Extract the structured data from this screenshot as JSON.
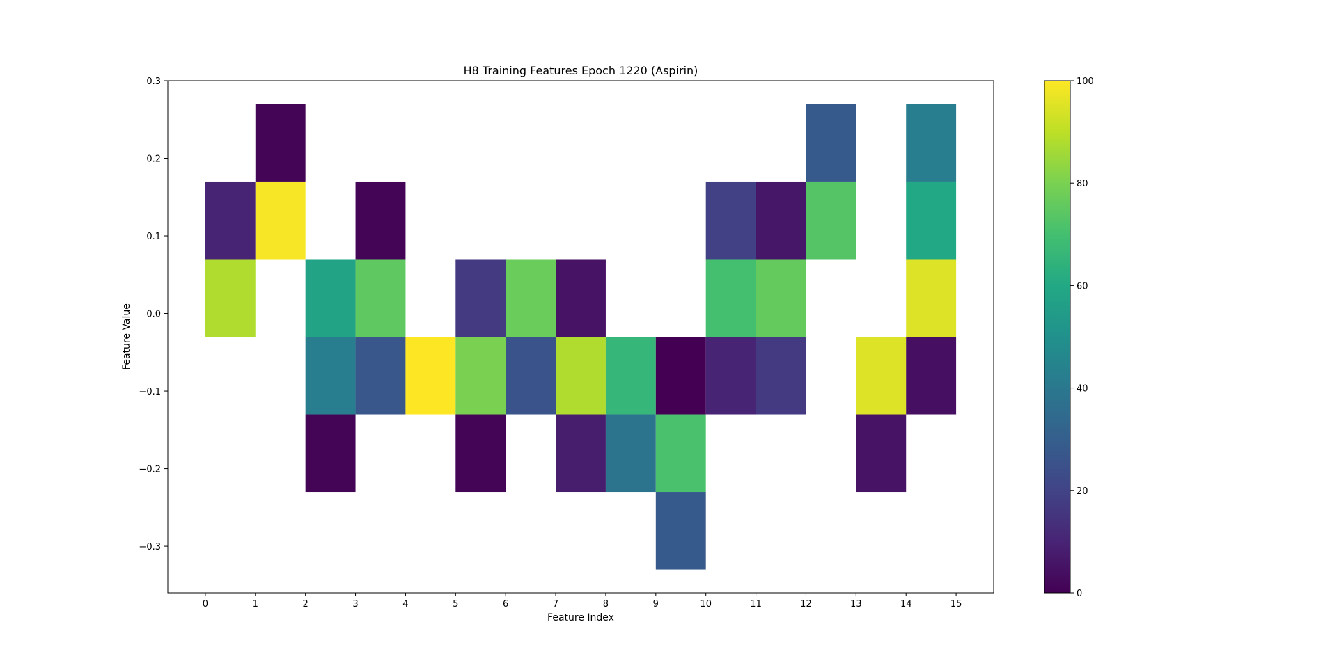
{
  "chart_data": {
    "type": "heatmap",
    "title": "H8 Training Features Epoch 1220 (Aspirin)",
    "xlabel": "Feature Index",
    "ylabel": "Feature Value",
    "xlim": [
      -0.75,
      15.75
    ],
    "ylim": [
      -0.36,
      0.3
    ],
    "x_ticks": [
      0,
      1,
      2,
      3,
      4,
      5,
      6,
      7,
      8,
      9,
      10,
      11,
      12,
      13,
      14,
      15
    ],
    "y_ticks": [
      -0.3,
      -0.2,
      -0.1,
      0.0,
      0.1,
      0.2,
      0.3
    ],
    "y_tick_labels": [
      "−0.3",
      "−0.2",
      "−0.1",
      "0.0",
      "0.1",
      "0.2",
      "0.3"
    ],
    "colorbar": {
      "min": 0,
      "max": 100,
      "ticks": [
        0,
        20,
        40,
        60,
        80,
        100
      ],
      "colormap": "viridis"
    },
    "grid": false,
    "cells": [
      {
        "x0": 0,
        "x1": 1,
        "y0": 0.07,
        "y1": 0.17,
        "value": 10
      },
      {
        "x0": 0,
        "x1": 1,
        "y0": -0.03,
        "y1": 0.07,
        "value": 88
      },
      {
        "x0": 1,
        "x1": 2,
        "y0": 0.17,
        "y1": 0.27,
        "value": 1
      },
      {
        "x0": 1,
        "x1": 2,
        "y0": 0.07,
        "y1": 0.17,
        "value": 99
      },
      {
        "x0": 2,
        "x1": 3,
        "y0": -0.03,
        "y1": 0.07,
        "value": 58
      },
      {
        "x0": 2,
        "x1": 3,
        "y0": -0.13,
        "y1": -0.03,
        "value": 42
      },
      {
        "x0": 2,
        "x1": 3,
        "y0": -0.23,
        "y1": -0.13,
        "value": 1
      },
      {
        "x0": 3,
        "x1": 4,
        "y0": 0.07,
        "y1": 0.17,
        "value": 1
      },
      {
        "x0": 3,
        "x1": 4,
        "y0": -0.03,
        "y1": 0.07,
        "value": 75
      },
      {
        "x0": 3,
        "x1": 4,
        "y0": -0.13,
        "y1": -0.03,
        "value": 27
      },
      {
        "x0": 4,
        "x1": 5,
        "y0": -0.13,
        "y1": -0.03,
        "value": 100
      },
      {
        "x0": 5,
        "x1": 6,
        "y0": -0.03,
        "y1": 0.07,
        "value": 17
      },
      {
        "x0": 5,
        "x1": 6,
        "y0": -0.13,
        "y1": -0.03,
        "value": 80
      },
      {
        "x0": 5,
        "x1": 6,
        "y0": -0.23,
        "y1": -0.13,
        "value": 1
      },
      {
        "x0": 6,
        "x1": 7,
        "y0": -0.03,
        "y1": 0.07,
        "value": 77
      },
      {
        "x0": 6,
        "x1": 7,
        "y0": -0.13,
        "y1": -0.03,
        "value": 26
      },
      {
        "x0": 7,
        "x1": 8,
        "y0": -0.03,
        "y1": 0.07,
        "value": 5
      },
      {
        "x0": 7,
        "x1": 8,
        "y0": -0.13,
        "y1": -0.03,
        "value": 88
      },
      {
        "x0": 7,
        "x1": 8,
        "y0": -0.23,
        "y1": -0.13,
        "value": 8
      },
      {
        "x0": 8,
        "x1": 9,
        "y0": -0.13,
        "y1": -0.03,
        "value": 66
      },
      {
        "x0": 8,
        "x1": 9,
        "y0": -0.23,
        "y1": -0.13,
        "value": 38
      },
      {
        "x0": 9,
        "x1": 10,
        "y0": -0.13,
        "y1": -0.03,
        "value": 0
      },
      {
        "x0": 9,
        "x1": 10,
        "y0": -0.23,
        "y1": -0.13,
        "value": 71
      },
      {
        "x0": 9,
        "x1": 10,
        "y0": -0.33,
        "y1": -0.23,
        "value": 28
      },
      {
        "x0": 10,
        "x1": 11,
        "y0": 0.07,
        "y1": 0.17,
        "value": 19
      },
      {
        "x0": 10,
        "x1": 11,
        "y0": -0.03,
        "y1": 0.07,
        "value": 70
      },
      {
        "x0": 10,
        "x1": 11,
        "y0": -0.13,
        "y1": -0.03,
        "value": 10
      },
      {
        "x0": 11,
        "x1": 12,
        "y0": 0.07,
        "y1": 0.17,
        "value": 6
      },
      {
        "x0": 11,
        "x1": 12,
        "y0": -0.03,
        "y1": 0.07,
        "value": 76
      },
      {
        "x0": 11,
        "x1": 12,
        "y0": -0.13,
        "y1": -0.03,
        "value": 17
      },
      {
        "x0": 12,
        "x1": 13,
        "y0": 0.17,
        "y1": 0.27,
        "value": 28
      },
      {
        "x0": 12,
        "x1": 13,
        "y0": 0.07,
        "y1": 0.17,
        "value": 73
      },
      {
        "x0": 13,
        "x1": 14,
        "y0": -0.13,
        "y1": -0.03,
        "value": 95
      },
      {
        "x0": 13,
        "x1": 14,
        "y0": -0.23,
        "y1": -0.13,
        "value": 5
      },
      {
        "x0": 14,
        "x1": 15,
        "y0": 0.17,
        "y1": 0.27,
        "value": 42
      },
      {
        "x0": 14,
        "x1": 15,
        "y0": 0.07,
        "y1": 0.17,
        "value": 60
      },
      {
        "x0": 14,
        "x1": 15,
        "y0": -0.03,
        "y1": 0.07,
        "value": 95
      },
      {
        "x0": 14,
        "x1": 15,
        "y0": -0.13,
        "y1": -0.03,
        "value": 4
      }
    ]
  }
}
